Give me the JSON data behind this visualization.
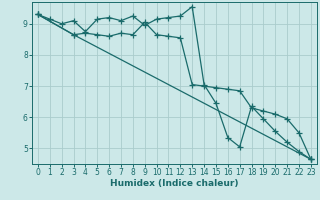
{
  "title": "",
  "xlabel": "Humidex (Indice chaleur)",
  "bg_color": "#cce8e8",
  "grid_color": "#aacccc",
  "line_color": "#1a6b6b",
  "xlim": [
    -0.5,
    23.5
  ],
  "ylim": [
    4.5,
    9.7
  ],
  "yticks": [
    5,
    6,
    7,
    8,
    9
  ],
  "xticks": [
    0,
    1,
    2,
    3,
    4,
    5,
    6,
    7,
    8,
    9,
    10,
    11,
    12,
    13,
    14,
    15,
    16,
    17,
    18,
    19,
    20,
    21,
    22,
    23
  ],
  "line1_x": [
    0,
    1,
    2,
    3,
    4,
    5,
    6,
    7,
    8,
    9,
    10,
    11,
    12,
    13,
    14,
    15,
    16,
    17,
    18,
    19,
    20,
    21,
    22,
    23
  ],
  "line1_y": [
    9.3,
    9.15,
    9.0,
    9.1,
    8.75,
    9.15,
    9.2,
    9.1,
    9.25,
    8.95,
    9.15,
    9.2,
    9.25,
    9.55,
    7.05,
    6.45,
    5.35,
    5.05,
    6.35,
    5.95,
    5.55,
    5.2,
    4.9,
    4.65
  ],
  "line2_x": [
    0,
    3,
    4,
    5,
    6,
    7,
    8,
    9,
    10,
    11,
    12,
    13,
    14,
    15,
    16,
    17,
    18,
    19,
    20,
    21,
    22,
    23
  ],
  "line2_y": [
    9.3,
    8.65,
    8.7,
    8.65,
    8.6,
    8.7,
    8.65,
    9.05,
    8.65,
    8.6,
    8.55,
    7.05,
    7.0,
    6.95,
    6.9,
    6.85,
    6.3,
    6.2,
    6.1,
    5.95,
    5.5,
    4.65
  ],
  "line3_x": [
    0,
    3,
    23
  ],
  "line3_y": [
    9.3,
    8.65,
    4.65
  ]
}
